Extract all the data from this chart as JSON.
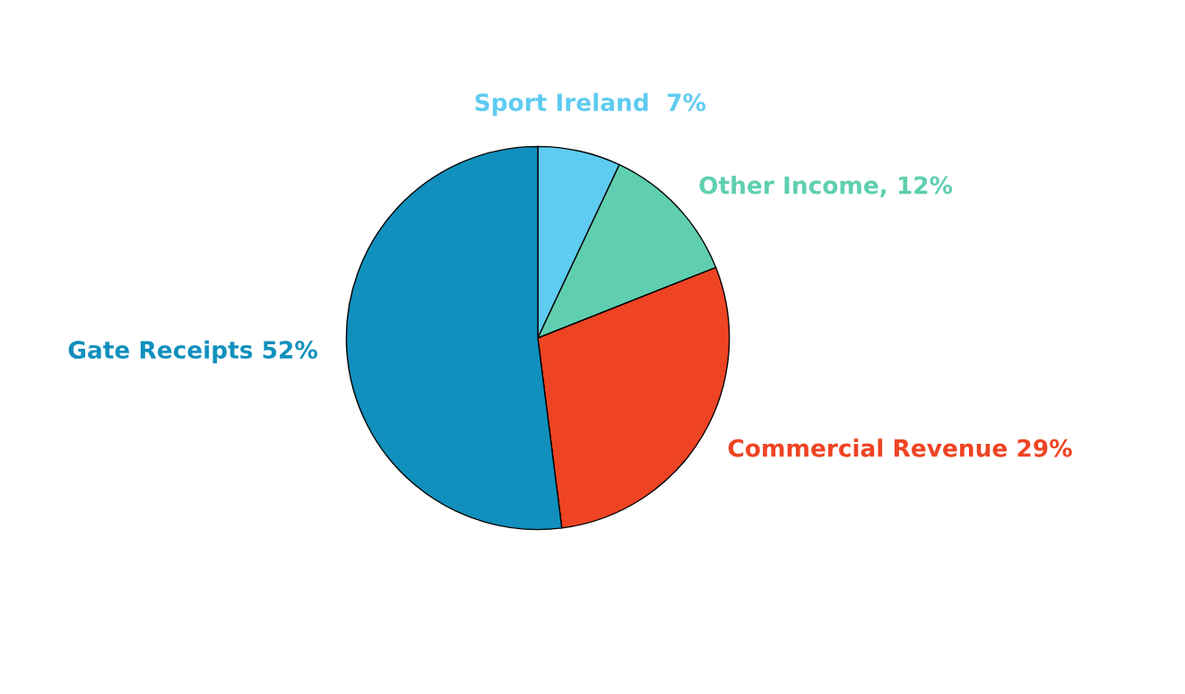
{
  "chart_data": {
    "type": "pie",
    "categories": [
      "Sport Ireland",
      "Other Income",
      "Commercial Revenue",
      "Gate Receipts"
    ],
    "values": [
      7,
      12,
      29,
      52
    ],
    "value_labels": [
      "7%",
      "12%",
      "29%",
      "52%"
    ],
    "colors": [
      "#5ecbf0",
      "#5fcfb0",
      "#ee4423",
      "#1190bd"
    ]
  }
}
